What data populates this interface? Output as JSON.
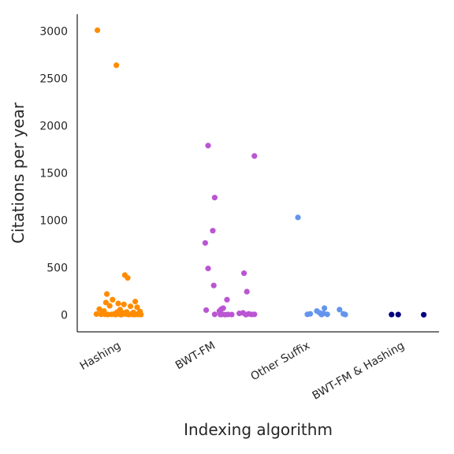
{
  "chart_data": {
    "type": "scatter",
    "title": "",
    "xlabel": "Indexing algorithm",
    "ylabel": "Citations per year",
    "ylim": [
      -180,
      3180
    ],
    "yticks": [
      0,
      500,
      1000,
      1500,
      2000,
      2500,
      3000
    ],
    "grid": false,
    "categories": [
      "Hashing",
      "BWT-FM",
      "Other Suffix",
      "BWT-FM & Hashing"
    ],
    "colors": {
      "Hashing": "#ff8c00",
      "BWT-FM": "#ba55d3",
      "Other Suffix": "#6495ed",
      "BWT-FM & Hashing": "#000080"
    },
    "series": [
      {
        "category": "Hashing",
        "points": [
          [
            -0.22,
            3010
          ],
          [
            -0.02,
            2640
          ],
          [
            0.07,
            420
          ],
          [
            0.1,
            390
          ],
          [
            -0.12,
            220
          ],
          [
            -0.06,
            160
          ],
          [
            0.18,
            140
          ],
          [
            -0.13,
            130
          ],
          [
            0.0,
            120
          ],
          [
            0.06,
            110
          ],
          [
            -0.09,
            95
          ],
          [
            0.13,
            90
          ],
          [
            0.2,
            80
          ],
          [
            -0.2,
            60
          ],
          [
            0.02,
            55
          ],
          [
            -0.15,
            40
          ],
          [
            0.23,
            35
          ],
          [
            0.09,
            30
          ],
          [
            -0.17,
            20
          ],
          [
            0.15,
            15
          ],
          [
            -0.23,
            8
          ],
          [
            -0.18,
            5
          ],
          [
            -0.14,
            5
          ],
          [
            -0.11,
            3
          ],
          [
            -0.07,
            5
          ],
          [
            -0.04,
            10
          ],
          [
            0.01,
            6
          ],
          [
            0.04,
            4
          ],
          [
            0.08,
            8
          ],
          [
            0.11,
            3
          ],
          [
            0.14,
            5
          ],
          [
            0.17,
            2
          ],
          [
            0.19,
            6
          ],
          [
            0.21,
            4
          ],
          [
            0.24,
            3
          ],
          [
            -0.03,
            2
          ],
          [
            0.03,
            2
          ],
          [
            0.05,
            20
          ],
          [
            0.16,
            25
          ],
          [
            -0.01,
            30
          ]
        ]
      },
      {
        "category": "BWT-FM",
        "points": [
          [
            -0.05,
            1790
          ],
          [
            0.44,
            1680
          ],
          [
            0.02,
            1240
          ],
          [
            0.0,
            890
          ],
          [
            -0.08,
            760
          ],
          [
            -0.05,
            490
          ],
          [
            0.33,
            440
          ],
          [
            0.01,
            310
          ],
          [
            0.36,
            245
          ],
          [
            0.15,
            160
          ],
          [
            -0.07,
            50
          ],
          [
            0.11,
            70
          ],
          [
            0.09,
            60
          ],
          [
            0.07,
            40
          ],
          [
            0.32,
            20
          ],
          [
            0.28,
            15
          ],
          [
            0.38,
            10
          ],
          [
            0.02,
            5
          ],
          [
            0.08,
            3
          ],
          [
            0.1,
            5
          ],
          [
            0.13,
            2
          ],
          [
            0.16,
            4
          ],
          [
            0.2,
            3
          ],
          [
            0.35,
            2
          ],
          [
            0.41,
            4
          ],
          [
            0.44,
            5
          ]
        ]
      },
      {
        "category": "Other Suffix",
        "points": [
          [
            -0.1,
            1030
          ],
          [
            0.18,
            70
          ],
          [
            0.34,
            55
          ],
          [
            0.1,
            40
          ],
          [
            0.13,
            20
          ],
          [
            0.17,
            15
          ],
          [
            0.38,
            10
          ],
          [
            0.0,
            5
          ],
          [
            0.03,
            10
          ],
          [
            0.15,
            3
          ],
          [
            0.21,
            5
          ],
          [
            0.4,
            3
          ]
        ]
      },
      {
        "category": "BWT-FM & Hashing",
        "points": [
          [
            -0.11,
            3
          ],
          [
            -0.04,
            3
          ],
          [
            0.23,
            1
          ]
        ]
      }
    ]
  }
}
